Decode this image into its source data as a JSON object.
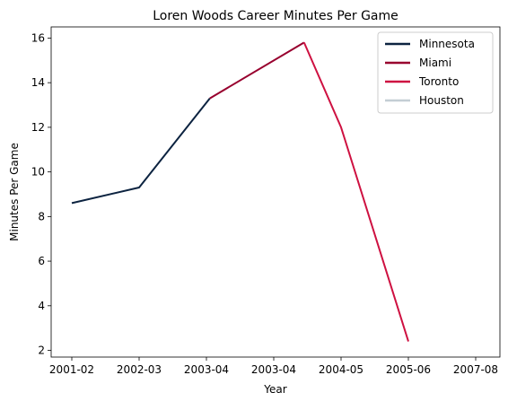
{
  "chart_data": {
    "type": "line",
    "title": "Loren Woods Career Minutes Per Game",
    "xlabel": "Year",
    "ylabel": "Minutes Per Game",
    "categories": [
      "2001-02",
      "2002-03",
      "2003-04",
      "2003-04",
      "2004-05",
      "2005-06",
      "2007-08"
    ],
    "ylim": [
      1.7,
      16.5
    ],
    "yticks": [
      2,
      4,
      6,
      8,
      10,
      12,
      14,
      16
    ],
    "grid": false,
    "legend_position": "top-right",
    "series": [
      {
        "name": "Minnesota",
        "color": "#0c2340",
        "x": [
          0,
          1,
          2
        ],
        "values": [
          8.6,
          9.3,
          13.3
        ]
      },
      {
        "name": "Miami",
        "color": "#98002e",
        "x": [
          2,
          3
        ],
        "values": [
          13.3,
          15.8
        ]
      },
      {
        "name": "Toronto",
        "color": "#ce1141",
        "x": [
          3,
          4,
          5
        ],
        "values": [
          15.8,
          12.0,
          2.4
        ]
      },
      {
        "name": "Houston",
        "color": "#c4ced4",
        "x": [],
        "values": []
      }
    ]
  }
}
